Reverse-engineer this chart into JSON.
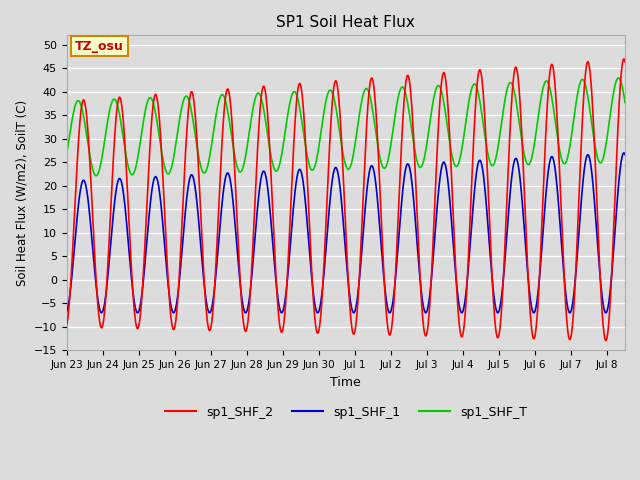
{
  "title": "SP1 Soil Heat Flux",
  "xlabel": "Time",
  "ylabel": "Soil Heat Flux (W/m2), SoilT (C)",
  "ylim": [
    -15,
    52
  ],
  "background_color": "#dcdcdc",
  "plot_bg_color": "#dcdcdc",
  "annotation_text": "TZ_osu",
  "annotation_color": "#cc0000",
  "annotation_bg": "#ffffcc",
  "annotation_border": "#cc8800",
  "legend_entries": [
    "sp1_SHF_2",
    "sp1_SHF_1",
    "sp1_SHF_T"
  ],
  "legend_colors": [
    "#ff0000",
    "#0000cc",
    "#00cc00"
  ],
  "line_colors": {
    "shf2": "#ff0000",
    "shf1": "#0000cc",
    "shfT": "#00cc00"
  },
  "xtick_labels": [
    "Jun 23",
    "Jun 24",
    "Jun 25",
    "Jun 26",
    "Jun 27",
    "Jun 28",
    "Jun 29",
    "Jun 30",
    "Jul 1",
    "Jul 2",
    "Jul 3",
    "Jul 4",
    "Jul 5",
    "Jul 6",
    "Jul 7",
    "Jul 8"
  ],
  "xlim_start": 0,
  "xlim_end": 15.5,
  "ytick_min": -15,
  "ytick_max": 50,
  "ytick_step": 5
}
